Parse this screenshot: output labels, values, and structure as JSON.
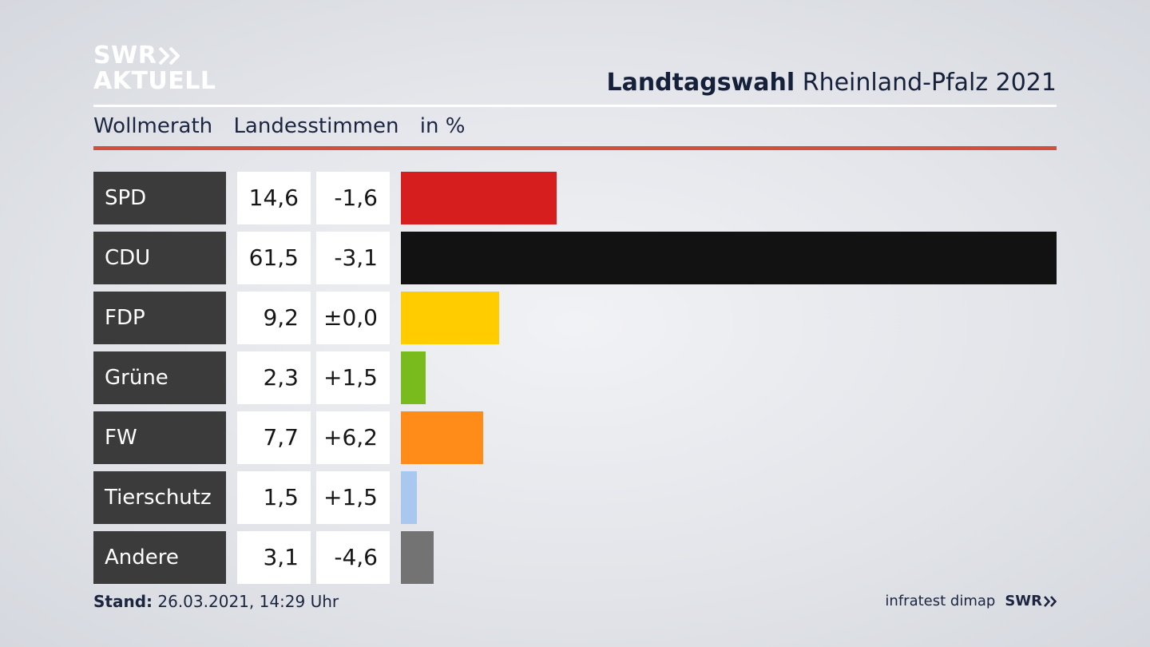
{
  "brand": {
    "logo_line1": "SWR",
    "logo_line2": "AKTUELL",
    "logo_icon": "double-chevron-right-icon"
  },
  "header": {
    "title_bold": "Landtagswahl",
    "title_rest": "Rheinland-Pfalz 2021"
  },
  "subheader": {
    "place": "Wollmerath",
    "measure": "Landesstimmen",
    "unit": "in %"
  },
  "colors": {
    "accent_rule": "#d0503c",
    "label_bg": "#3b3b3b"
  },
  "chart_data": {
    "type": "bar",
    "orientation": "horizontal",
    "title": "Landtagswahl Rheinland-Pfalz 2021",
    "subtitle": "Wollmerath Landesstimmen in %",
    "unit": "%",
    "xlim": [
      0,
      61.5
    ],
    "grid": false,
    "rows": [
      {
        "party": "SPD",
        "value": 14.6,
        "value_label": "14,6",
        "diff_label": "-1,6",
        "color": "#d61e1e"
      },
      {
        "party": "CDU",
        "value": 61.5,
        "value_label": "61,5",
        "diff_label": "-3,1",
        "color": "#121212"
      },
      {
        "party": "FDP",
        "value": 9.2,
        "value_label": "9,2",
        "diff_label": "±0,0",
        "color": "#ffcc00"
      },
      {
        "party": "Grüne",
        "value": 2.3,
        "value_label": "2,3",
        "diff_label": "+1,5",
        "color": "#79bb1d"
      },
      {
        "party": "FW",
        "value": 7.7,
        "value_label": "7,7",
        "diff_label": "+6,2",
        "color": "#ff8c19"
      },
      {
        "party": "Tierschutz",
        "value": 1.5,
        "value_label": "1,5",
        "diff_label": "+1,5",
        "color": "#a8c8f0"
      },
      {
        "party": "Andere",
        "value": 3.1,
        "value_label": "3,1",
        "diff_label": "-4,6",
        "color": "#737373"
      }
    ]
  },
  "footer": {
    "stand_label": "Stand:",
    "stand_value": "26.03.2021, 14:29 Uhr",
    "source": "infratest dimap",
    "brand_small": "SWR"
  }
}
